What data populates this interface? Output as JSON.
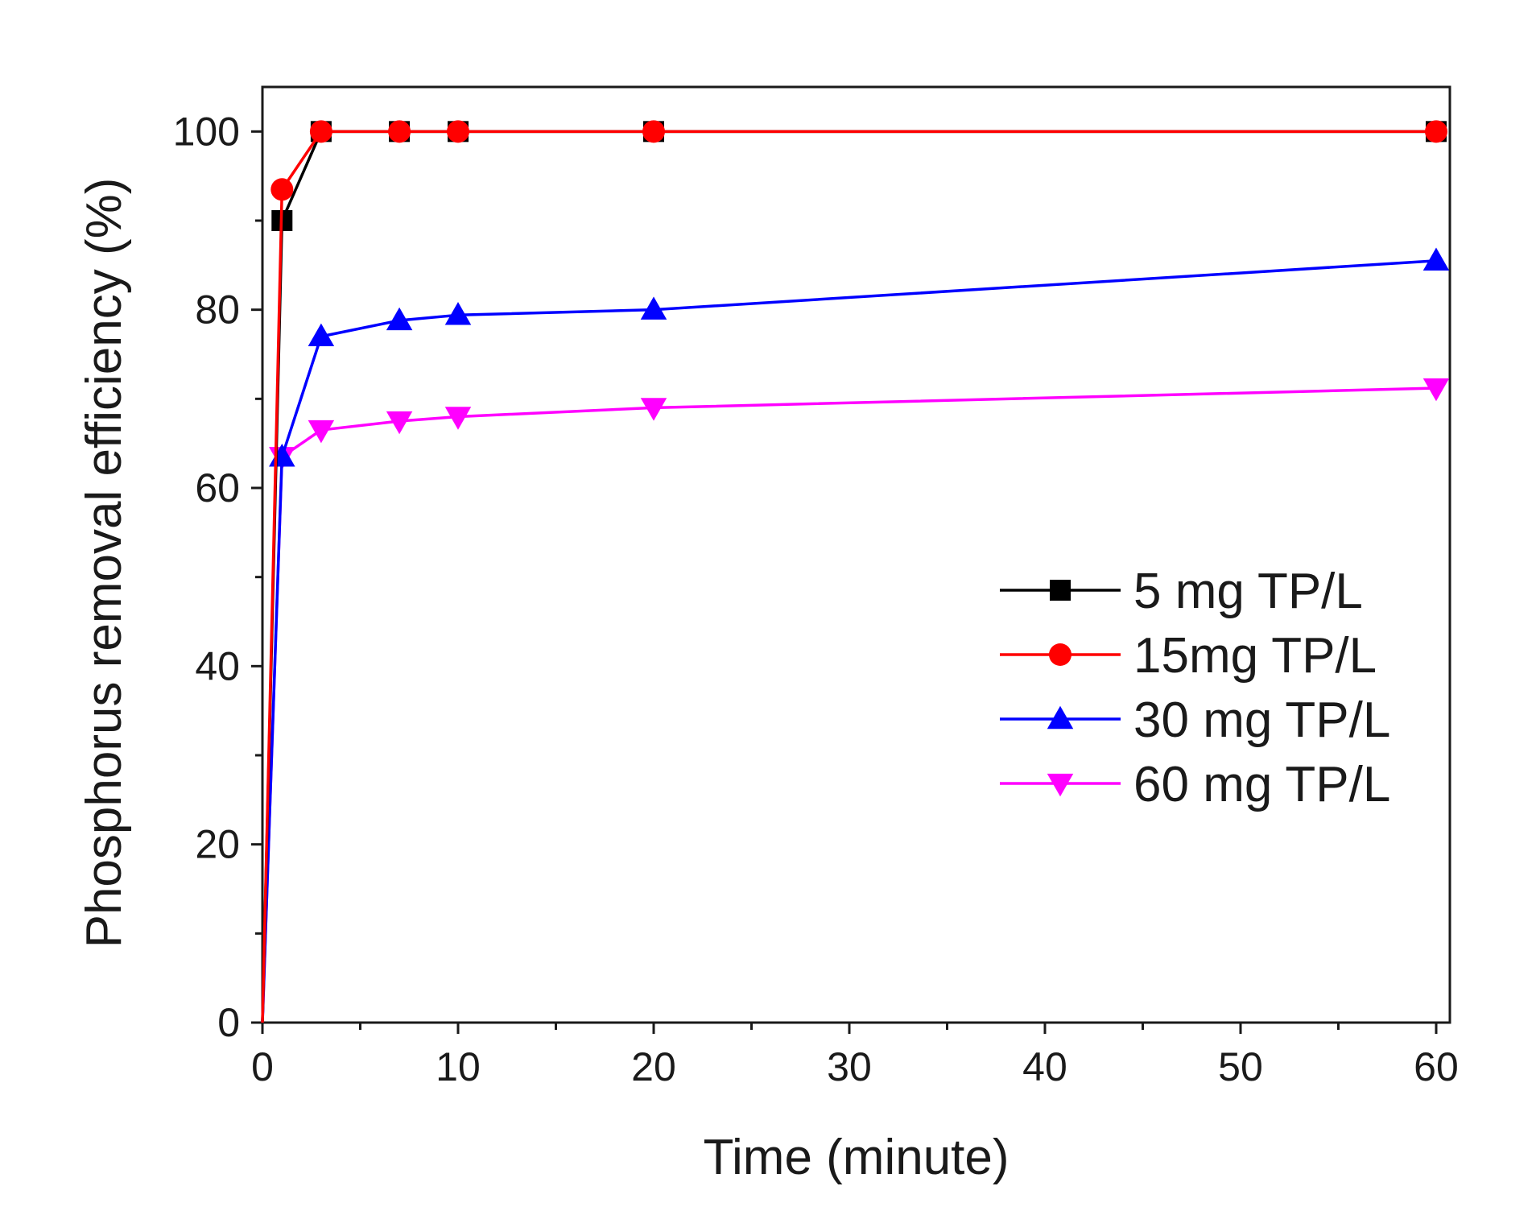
{
  "chart_data": {
    "type": "line",
    "title": "",
    "xlabel": "Time (minute)",
    "ylabel": "Phosphorus removal efficiency (%)",
    "xlim": [
      0,
      60.7
    ],
    "ylim": [
      0,
      105
    ],
    "xticks": [
      0,
      10,
      20,
      30,
      40,
      50,
      60
    ],
    "yticks": [
      0,
      20,
      40,
      60,
      80,
      100
    ],
    "grid": false,
    "legend_position": "right-center",
    "series": [
      {
        "name": "5 mg TP/L",
        "color": "#000000",
        "marker": "square",
        "x": [
          0,
          1,
          3,
          7,
          10,
          20,
          60
        ],
        "y": [
          0,
          90,
          100,
          100,
          100,
          100,
          100
        ]
      },
      {
        "name": "15mg TP/L",
        "color": "#ff0000",
        "marker": "circle",
        "x": [
          0,
          1,
          3,
          7,
          10,
          20,
          60
        ],
        "y": [
          0,
          93.5,
          100,
          100,
          100,
          100,
          100
        ]
      },
      {
        "name": "30 mg TP/L",
        "color": "#0000ff",
        "marker": "triangle-up",
        "x": [
          0,
          1,
          3,
          7,
          10,
          20,
          60
        ],
        "y": [
          0,
          63.5,
          77,
          78.8,
          79.4,
          80,
          85.5
        ]
      },
      {
        "name": "60 mg TP/L",
        "color": "#ff00ff",
        "marker": "triangle-down",
        "x": [
          0,
          1,
          3,
          7,
          10,
          20,
          60
        ],
        "y": [
          0,
          63.5,
          66.5,
          67.5,
          68,
          69,
          71.2
        ]
      }
    ]
  }
}
